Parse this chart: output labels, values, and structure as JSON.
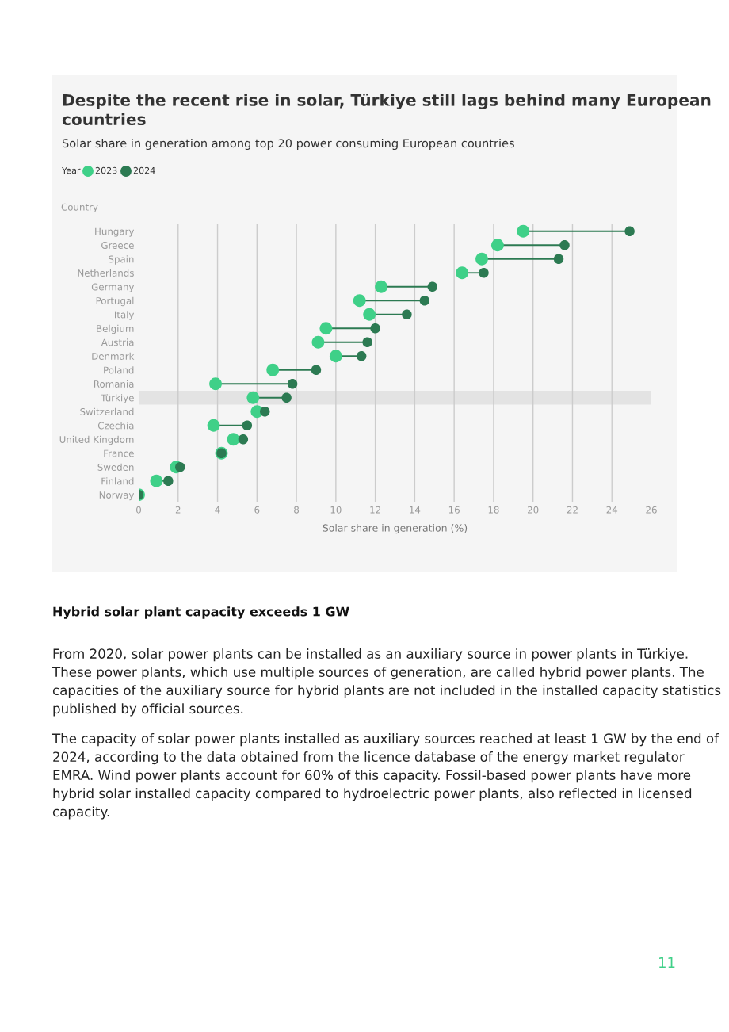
{
  "chart_data": {
    "type": "scatter",
    "orientation": "horizontal",
    "title": "Despite the recent rise in solar, Türkiye still lags behind many European countries",
    "subtitle": "Solar share in generation among top 20 power consuming European countries",
    "legend_title": "Year",
    "legend": "top left",
    "ylabel": "Country",
    "xlabel": "Solar share in generation (%)",
    "categories": [
      "Hungary",
      "Greece",
      "Spain",
      "Netherlands",
      "Germany",
      "Portugal",
      "Italy",
      "Belgium",
      "Austria",
      "Denmark",
      "Poland",
      "Romania",
      "Türkiye",
      "Switzerland",
      "Czechia",
      "United Kingdom",
      "France",
      "Sweden",
      "Finland",
      "Norway"
    ],
    "series": [
      {
        "name": "2023",
        "color": "#3fd088",
        "values": [
          19.5,
          18.2,
          17.4,
          16.4,
          12.3,
          11.2,
          11.7,
          9.5,
          9.1,
          10.0,
          6.8,
          3.9,
          5.8,
          6.0,
          3.8,
          4.8,
          4.2,
          1.9,
          0.9,
          0
        ]
      },
      {
        "name": "2024",
        "color": "#2c7a52",
        "values": [
          24.9,
          21.6,
          21.3,
          17.5,
          14.9,
          14.5,
          13.6,
          12.0,
          11.6,
          11.3,
          9.0,
          7.8,
          7.5,
          6.4,
          5.5,
          5.3,
          4.2,
          2.1,
          1.5,
          0
        ]
      }
    ],
    "xlim": [
      0,
      26
    ],
    "xticks": [
      0,
      2,
      4,
      6,
      8,
      10,
      12,
      14,
      16,
      18,
      20,
      22,
      24,
      26
    ],
    "grid": "x",
    "marker": "circle",
    "bands": [
      {
        "axis": "y",
        "from": "Türkiye",
        "to": "Türkiye",
        "color": "#e3e3e3"
      }
    ],
    "annotations": [
      "Hybrid solar plant capacity exceeds 1 GW",
      "From 2020, solar power plants can be installed as an auxiliary source in power plants in Türkiye. These power plants, which use multiple sources of generation, are called hybrid power plants. The capacities of the auxiliary source for hybrid plants are not included in the installed capacity statistics published by official sources.",
      "The capacity of solar power plants installed as auxiliary sources reached at least 1 GW by the end of 2024, according to the data obtained from the licence database of the energy market regulator EMRA. Wind power plants account for 60% of this capacity. Fossil-based power plants have more hybrid solar installed capacity compared to hydroelectric power plants, also reflected in licensed capacity.",
      "11"
    ]
  }
}
